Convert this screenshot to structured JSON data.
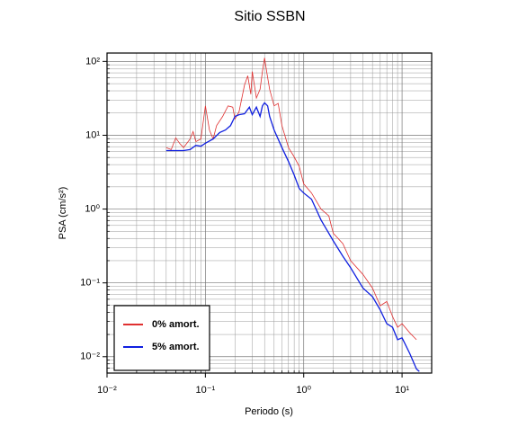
{
  "chart_data": {
    "type": "line",
    "title": "Sitio SSBN",
    "x_label": "Periodo (s)",
    "y_label": "PSA (cm/s²)",
    "xscale": "log",
    "yscale": "log",
    "grid": true,
    "legend": "lower left",
    "xlim": [
      0.01,
      20
    ],
    "ylim": [
      0.006,
      130
    ],
    "xticks": [
      {
        "value": 0.01,
        "label": "10⁻²"
      },
      {
        "value": 0.1,
        "label": "10⁻¹"
      },
      {
        "value": 1,
        "label": "10⁰"
      },
      {
        "value": 10,
        "label": "10¹"
      }
    ],
    "yticks": [
      {
        "value": 0.01,
        "label": "10⁻²"
      },
      {
        "value": 0.1,
        "label": "10⁻¹"
      },
      {
        "value": 1,
        "label": "10⁰"
      },
      {
        "value": 10,
        "label": "10¹"
      },
      {
        "value": 100,
        "label": "10²"
      }
    ],
    "series": [
      {
        "name": "0% amort.",
        "color": "#e03030",
        "x": [
          0.04,
          0.045,
          0.05,
          0.055,
          0.06,
          0.07,
          0.075,
          0.08,
          0.09,
          0.1,
          0.11,
          0.12,
          0.13,
          0.15,
          0.17,
          0.19,
          0.2,
          0.22,
          0.25,
          0.27,
          0.29,
          0.3,
          0.33,
          0.36,
          0.38,
          0.4,
          0.42,
          0.45,
          0.5,
          0.55,
          0.6,
          0.7,
          0.8,
          0.9,
          1.0,
          1.2,
          1.5,
          1.8,
          2,
          2.5,
          3,
          4,
          5,
          6,
          7,
          8,
          9,
          10,
          12,
          14
        ],
        "values": [
          6.8,
          6.4,
          9.2,
          7.7,
          6.8,
          8.9,
          11.2,
          8.2,
          8.9,
          25,
          11.8,
          8.9,
          13.5,
          18,
          25,
          24,
          16.6,
          20.8,
          48,
          64,
          36,
          73,
          32,
          42,
          73,
          112,
          73,
          42,
          25,
          27,
          13.5,
          6.8,
          5.1,
          3.8,
          2.2,
          1.65,
          1.0,
          0.81,
          0.47,
          0.34,
          0.2,
          0.13,
          0.085,
          0.049,
          0.056,
          0.035,
          0.025,
          0.028,
          0.021,
          0.017
        ]
      },
      {
        "name": "5% amort.",
        "color": "#1020e0",
        "x": [
          0.04,
          0.05,
          0.06,
          0.07,
          0.08,
          0.09,
          0.1,
          0.12,
          0.14,
          0.16,
          0.18,
          0.2,
          0.22,
          0.25,
          0.28,
          0.3,
          0.33,
          0.36,
          0.38,
          0.4,
          0.43,
          0.45,
          0.5,
          0.6,
          0.7,
          0.8,
          0.9,
          1.0,
          1.2,
          1.5,
          2,
          2.5,
          3,
          4,
          5,
          6,
          7,
          8,
          9,
          10,
          12,
          14,
          15
        ],
        "values": [
          6.2,
          6.2,
          6.2,
          6.4,
          7.3,
          7.1,
          7.8,
          8.9,
          10.9,
          11.8,
          13.5,
          18,
          19,
          19.6,
          24,
          19,
          24,
          18,
          25,
          27.5,
          25,
          18,
          11.8,
          6.8,
          4.4,
          2.9,
          1.9,
          1.65,
          1.36,
          0.71,
          0.37,
          0.23,
          0.16,
          0.085,
          0.065,
          0.043,
          0.028,
          0.025,
          0.017,
          0.018,
          0.011,
          0.0068,
          0.0063
        ]
      }
    ]
  }
}
